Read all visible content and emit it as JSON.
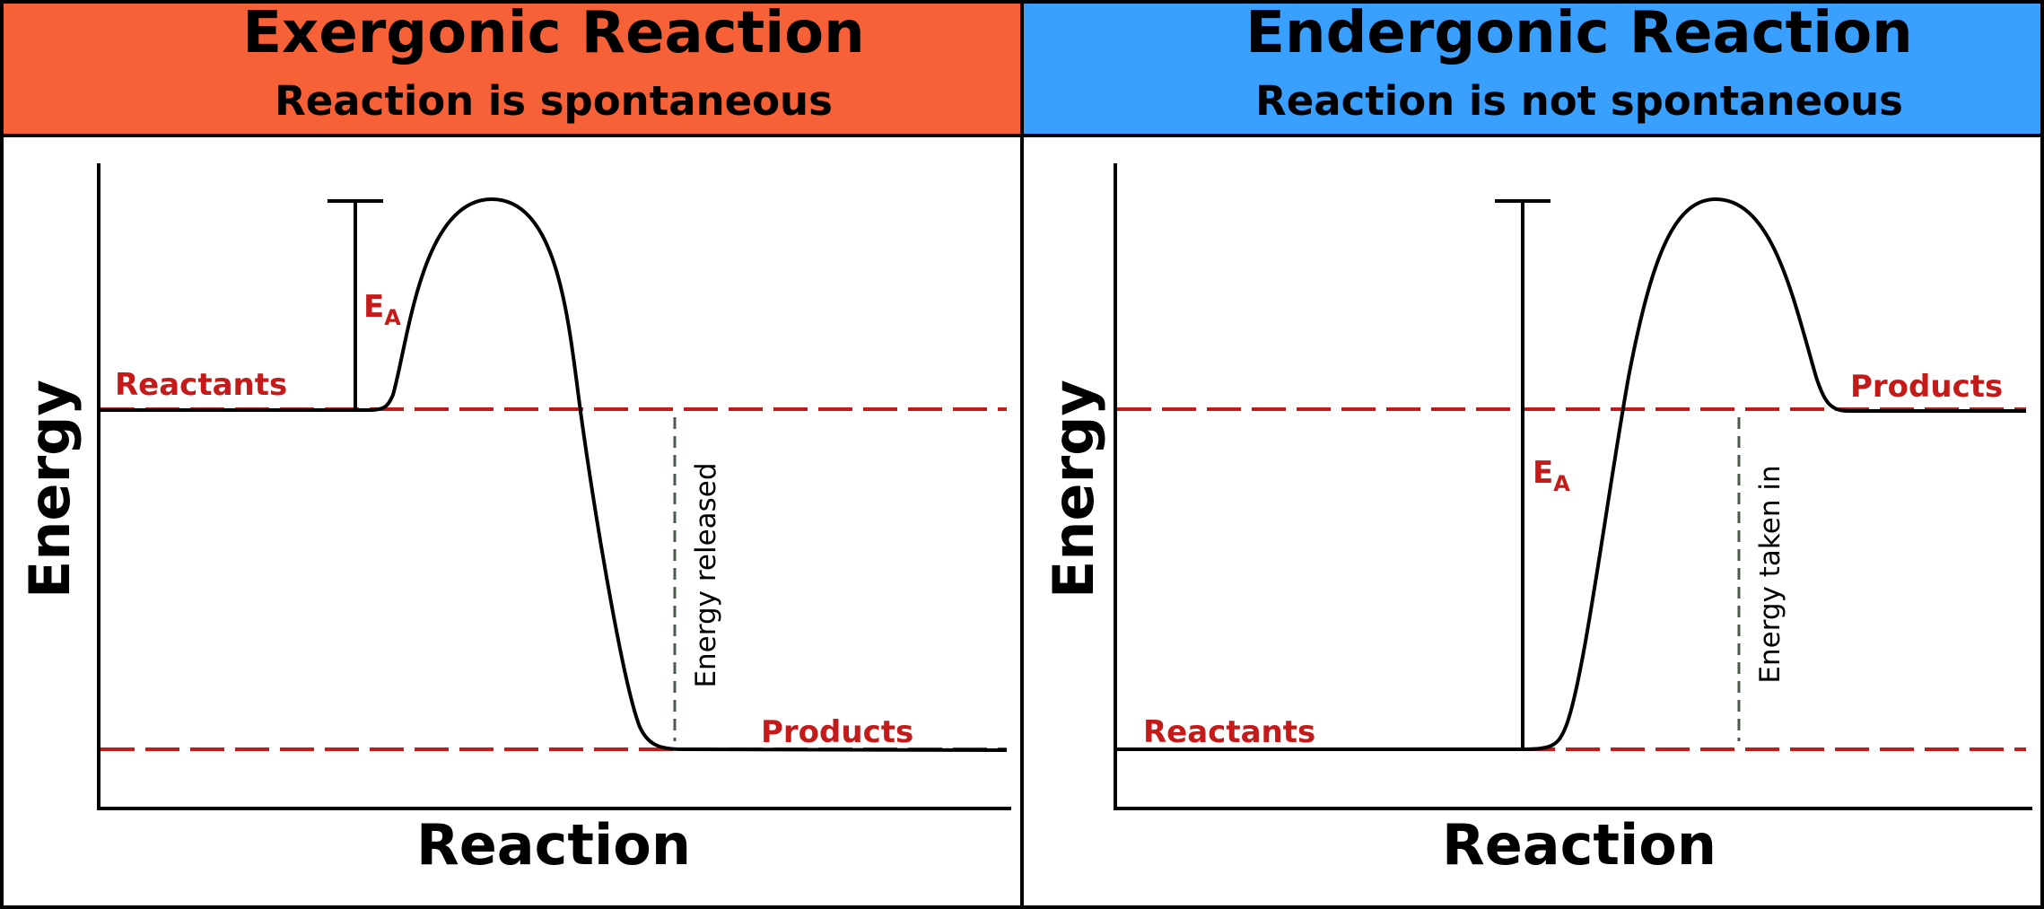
{
  "colors": {
    "exergonic_header": "#f76137",
    "endergonic_header": "#3aa0ff",
    "level_line": "#c41a1a",
    "energy_marker": "#4a5a4a",
    "curve": "#000000"
  },
  "panels": [
    {
      "id": "exergonic",
      "title": "Exergonic Reaction",
      "subtitle": "Reaction is spontaneous",
      "y_axis_label": "Energy",
      "x_axis_label": "Reaction",
      "reactants_label": "Reactants",
      "products_label": "Products",
      "activation_energy_label": "E",
      "activation_energy_subscript": "A",
      "energy_change_label": "Energy released",
      "header_icon": "none"
    },
    {
      "id": "endergonic",
      "title": "Endergonic Reaction",
      "subtitle": "Reaction is not spontaneous",
      "y_axis_label": "Energy",
      "x_axis_label": "Reaction",
      "reactants_label": "Reactants",
      "products_label": "Products",
      "activation_energy_label": "E",
      "activation_energy_subscript": "A",
      "energy_change_label": "Energy taken in",
      "header_icon": "none"
    }
  ]
}
